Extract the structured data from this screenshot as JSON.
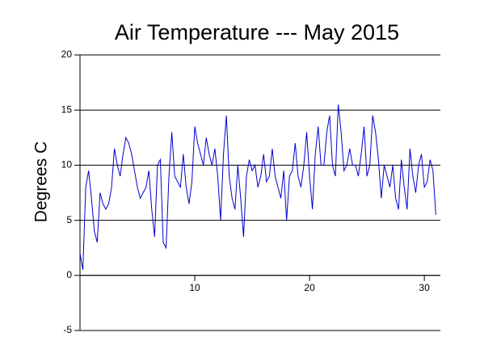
{
  "chart_data": {
    "type": "line",
    "title": "Air Temperature --- May 2015",
    "ylabel": "Degrees C",
    "xlim": [
      0,
      31.4
    ],
    "xticks": [
      10,
      20,
      30
    ],
    "ylim": [
      -5,
      20
    ],
    "yticks": [
      -5,
      0,
      5,
      10,
      15,
      20
    ],
    "grid": true,
    "x": [
      0,
      0.25,
      0.5,
      0.75,
      1,
      1.25,
      1.5,
      1.75,
      2,
      2.25,
      2.5,
      2.75,
      3,
      3.25,
      3.5,
      3.75,
      4,
      4.25,
      4.5,
      4.75,
      5,
      5.25,
      5.5,
      5.75,
      6,
      6.25,
      6.5,
      6.75,
      7,
      7.25,
      7.5,
      7.75,
      8,
      8.25,
      8.5,
      8.75,
      9,
      9.25,
      9.5,
      9.75,
      10,
      10.25,
      10.5,
      10.75,
      11,
      11.25,
      11.5,
      11.75,
      12,
      12.25,
      12.5,
      12.75,
      13,
      13.25,
      13.5,
      13.75,
      14,
      14.25,
      14.5,
      14.75,
      15,
      15.25,
      15.5,
      15.75,
      16,
      16.25,
      16.5,
      16.75,
      17,
      17.25,
      17.5,
      17.75,
      18,
      18.25,
      18.5,
      18.75,
      19,
      19.25,
      19.5,
      19.75,
      20,
      20.25,
      20.5,
      20.75,
      21,
      21.25,
      21.5,
      21.75,
      22,
      22.25,
      22.5,
      22.75,
      23,
      23.25,
      23.5,
      23.75,
      24,
      24.25,
      24.5,
      24.75,
      25,
      25.25,
      25.5,
      25.75,
      26,
      26.25,
      26.5,
      26.75,
      27,
      27.25,
      27.5,
      27.75,
      28,
      28.25,
      28.5,
      28.75,
      29,
      29.25,
      29.5,
      29.75,
      30,
      30.25,
      30.5,
      30.75,
      31
    ],
    "series": [
      {
        "name": "Air Temperature",
        "color": "#0000cc",
        "values": [
          2,
          0.5,
          8,
          9.5,
          7,
          4,
          3,
          7.5,
          6.5,
          6,
          6.5,
          8,
          11.5,
          10,
          9,
          11,
          12.5,
          12,
          11,
          9.5,
          8,
          7,
          7.5,
          8,
          9.5,
          6,
          3.5,
          10,
          10.5,
          3,
          2.5,
          9,
          13,
          9,
          8.5,
          8,
          11,
          8,
          6.5,
          8.5,
          13.5,
          12,
          11,
          10,
          12.5,
          11,
          10,
          11.5,
          9,
          5,
          11,
          14.5,
          9,
          7,
          6,
          10,
          7,
          3.5,
          9,
          10.5,
          9.5,
          10,
          8,
          9,
          11,
          8.5,
          9,
          11.5,
          9,
          8,
          7,
          9.5,
          5,
          9,
          9.5,
          12,
          9,
          8,
          10,
          13,
          9,
          6,
          11,
          13.5,
          10,
          10,
          13,
          14.5,
          10,
          9,
          15.5,
          13,
          9.5,
          10,
          11.5,
          10,
          10,
          9,
          11,
          13.5,
          9,
          10,
          14.5,
          13,
          10.5,
          7,
          10,
          9,
          8,
          10,
          7,
          6,
          10.5,
          8,
          6,
          11.5,
          9,
          7.5,
          10,
          11,
          8,
          8.5,
          10.5,
          9.5,
          5.5
        ]
      }
    ]
  }
}
